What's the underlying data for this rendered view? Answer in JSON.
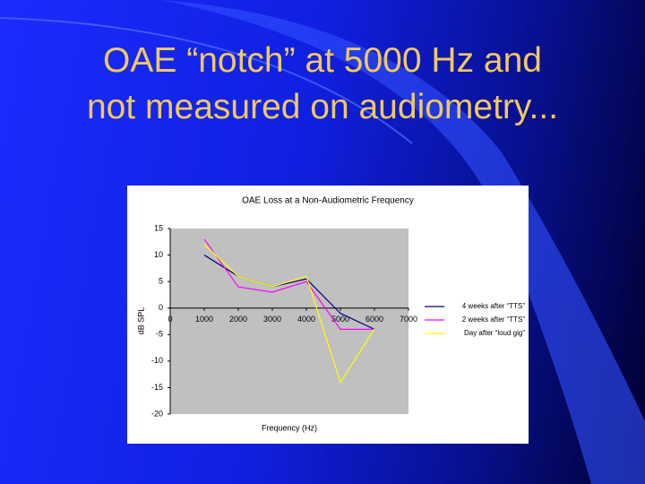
{
  "slide": {
    "title_lines": [
      "OAE “notch” at 5000 Hz and",
      "not measured on audiometry..."
    ]
  },
  "chart_data": {
    "type": "line",
    "title": "OAE Loss at a Non-Audiometric Frequency",
    "x_label": "Frequency (Hz)",
    "y_label": "dB SPL",
    "x": [
      1000,
      2000,
      3000,
      4000,
      5000,
      6000
    ],
    "xlim": [
      0,
      7000
    ],
    "xticks": [
      0,
      1000,
      2000,
      3000,
      4000,
      5000,
      6000,
      7000
    ],
    "ylim": [
      -20,
      15
    ],
    "yticks": [
      15,
      10,
      5,
      0,
      -5,
      -10,
      -15,
      -20
    ],
    "grid": false,
    "legend": "right",
    "series": [
      {
        "name": "4 weeks after “TTS”",
        "color": "#000080",
        "values": [
          10,
          6,
          4,
          5.5,
          -1,
          -4
        ]
      },
      {
        "name": "2 weeks after “TTS”",
        "color": "#ff00ff",
        "values": [
          13,
          4,
          3,
          5,
          -4,
          -4
        ]
      },
      {
        "name": "Day after “loud gig”",
        "color": "#ffff00",
        "values": [
          12,
          6,
          4,
          6,
          -14,
          -4
        ]
      }
    ]
  }
}
